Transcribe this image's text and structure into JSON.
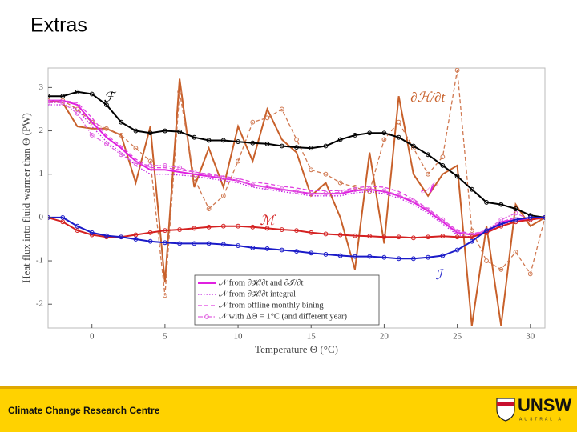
{
  "slide": {
    "title": "Extras",
    "footer": "Climate Change Research Centre",
    "logo": "UNSW",
    "logo_sub": "AUSTRALIA"
  },
  "chart_data": {
    "type": "line",
    "xlabel": "Temperature Θ (°C)",
    "ylabel": "Heat flux into fluid warmer than Θ (PW)",
    "xlim": [
      -3,
      31
    ],
    "ylim": [
      -2.55,
      3.45
    ],
    "xticks": [
      0,
      5,
      10,
      15,
      20,
      25,
      30
    ],
    "yticks": [
      -2,
      -1,
      0,
      1,
      2,
      3
    ],
    "grid": false,
    "legend": "lower center",
    "x": [
      -3,
      -2,
      -1,
      0,
      1,
      2,
      3,
      4,
      5,
      6,
      7,
      8,
      9,
      10,
      11,
      12,
      13,
      14,
      15,
      16,
      17,
      18,
      19,
      20,
      21,
      22,
      23,
      24,
      25,
      26,
      27,
      28,
      29,
      30,
      31
    ],
    "series": [
      {
        "name": "𝒩 from ∂ℋ/∂t and ∂ℐ/∂t",
        "color": "#e020e0",
        "dash": "solid",
        "markers": false,
        "legend": true,
        "values": [
          2.7,
          2.7,
          2.6,
          2.2,
          1.85,
          1.6,
          1.3,
          1.1,
          1.1,
          1.05,
          1.0,
          0.95,
          0.9,
          0.85,
          0.75,
          0.7,
          0.65,
          0.6,
          0.55,
          0.55,
          0.55,
          0.62,
          0.65,
          0.6,
          0.5,
          0.35,
          0.15,
          -0.1,
          -0.35,
          -0.4,
          -0.35,
          -0.1,
          -0.05,
          -0.05,
          0
        ]
      },
      {
        "name": "𝒩 from ∂ℋ/∂t integral",
        "color": "#c020e0",
        "dash": "dotted",
        "markers": false,
        "legend": true,
        "values": [
          2.6,
          2.6,
          2.5,
          2.1,
          1.75,
          1.5,
          1.2,
          1.0,
          1.0,
          0.98,
          0.95,
          0.9,
          0.85,
          0.8,
          0.7,
          0.65,
          0.6,
          0.55,
          0.5,
          0.5,
          0.5,
          0.57,
          0.6,
          0.55,
          0.45,
          0.3,
          0.1,
          -0.15,
          -0.4,
          -0.45,
          -0.35,
          -0.15,
          -0.1,
          -0.05,
          0
        ]
      },
      {
        "name": "𝒩 from offline monthly bining",
        "color": "#e040e0",
        "dash": "dashed",
        "markers": false,
        "legend": true,
        "values": [
          2.7,
          2.7,
          2.65,
          2.3,
          1.9,
          1.65,
          1.35,
          1.15,
          1.15,
          1.1,
          1.05,
          1.0,
          0.95,
          0.9,
          0.82,
          0.78,
          0.72,
          0.68,
          0.62,
          0.62,
          0.62,
          0.68,
          0.72,
          0.7,
          0.6,
          0.42,
          0.2,
          -0.05,
          -0.3,
          -0.38,
          -0.3,
          -0.1,
          0,
          -0.05,
          0
        ]
      },
      {
        "name": "𝒩 with ΔΘ = 1°C (and different year)",
        "color": "#e060e0",
        "dash": "dashdot",
        "markers": true,
        "legend": true,
        "values": [
          2.65,
          2.65,
          2.4,
          1.9,
          1.7,
          1.45,
          1.25,
          1.2,
          1.2,
          1.15,
          1.05,
          0.98,
          0.92,
          0.85,
          0.75,
          0.7,
          0.66,
          0.6,
          0.56,
          0.56,
          0.58,
          0.64,
          0.66,
          0.62,
          0.52,
          0.38,
          0.18,
          -0.05,
          -0.32,
          -0.4,
          -0.3,
          -0.05,
          0.1,
          -0.05,
          0
        ]
      },
      {
        "name": "ℱ",
        "color": "#000000",
        "dash": "solid",
        "markers": true,
        "legend": false,
        "values": [
          2.8,
          2.8,
          2.9,
          2.85,
          2.6,
          2.2,
          2.0,
          1.95,
          2.0,
          1.98,
          1.85,
          1.78,
          1.78,
          1.75,
          1.72,
          1.7,
          1.65,
          1.62,
          1.6,
          1.65,
          1.8,
          1.9,
          1.95,
          1.95,
          1.85,
          1.65,
          1.45,
          1.2,
          0.95,
          0.65,
          0.35,
          0.3,
          0.2,
          0.05,
          0
        ]
      },
      {
        "name": "ℳ",
        "color": "#d42020",
        "dash": "solid",
        "markers": true,
        "legend": false,
        "values": [
          0,
          -0.1,
          -0.3,
          -0.4,
          -0.45,
          -0.45,
          -0.4,
          -0.35,
          -0.3,
          -0.28,
          -0.25,
          -0.22,
          -0.2,
          -0.2,
          -0.22,
          -0.25,
          -0.28,
          -0.3,
          -0.35,
          -0.38,
          -0.4,
          -0.42,
          -0.43,
          -0.45,
          -0.45,
          -0.47,
          -0.45,
          -0.43,
          -0.45,
          -0.45,
          -0.35,
          -0.2,
          -0.1,
          -0.05,
          0
        ]
      },
      {
        "name": "ℐ",
        "color": "#1a1ac8",
        "dash": "solid",
        "markers": true,
        "legend": false,
        "values": [
          0,
          0,
          -0.2,
          -0.35,
          -0.42,
          -0.45,
          -0.5,
          -0.55,
          -0.58,
          -0.6,
          -0.6,
          -0.6,
          -0.62,
          -0.65,
          -0.7,
          -0.72,
          -0.75,
          -0.78,
          -0.82,
          -0.85,
          -0.88,
          -0.9,
          -0.9,
          -0.92,
          -0.95,
          -0.95,
          -0.92,
          -0.88,
          -0.75,
          -0.55,
          -0.3,
          -0.15,
          -0.05,
          0,
          0
        ]
      },
      {
        "name": "∂ℋ/∂t",
        "color": "#c8602a",
        "dash": "solid",
        "markers": false,
        "legend": false,
        "values": [
          2.7,
          2.65,
          2.1,
          2.05,
          2.05,
          1.9,
          0.8,
          2.1,
          -1.5,
          3.2,
          0.7,
          1.6,
          0.7,
          2.1,
          1.3,
          2.5,
          1.8,
          1.5,
          0.5,
          0.8,
          0.0,
          -1.2,
          1.5,
          -0.6,
          2.8,
          1.0,
          0.5,
          1.0,
          1.2,
          -2.5,
          -0.2,
          -2.5,
          0.3,
          -0.2,
          0
        ]
      },
      {
        "color": "#d07850",
        "dash": "dashed",
        "markers": true,
        "legend": false,
        "values": [
          2.7,
          2.7,
          2.5,
          2.2,
          2.05,
          1.9,
          1.6,
          1.3,
          -1.8,
          2.9,
          0.9,
          0.2,
          0.5,
          1.3,
          2.2,
          2.3,
          2.5,
          1.8,
          1.1,
          1.0,
          0.8,
          0.7,
          0.6,
          1.8,
          2.2,
          1.6,
          1.0,
          1.4,
          3.4,
          -0.3,
          -1.0,
          -1.2,
          -0.8,
          -1.3,
          0
        ]
      }
    ]
  }
}
